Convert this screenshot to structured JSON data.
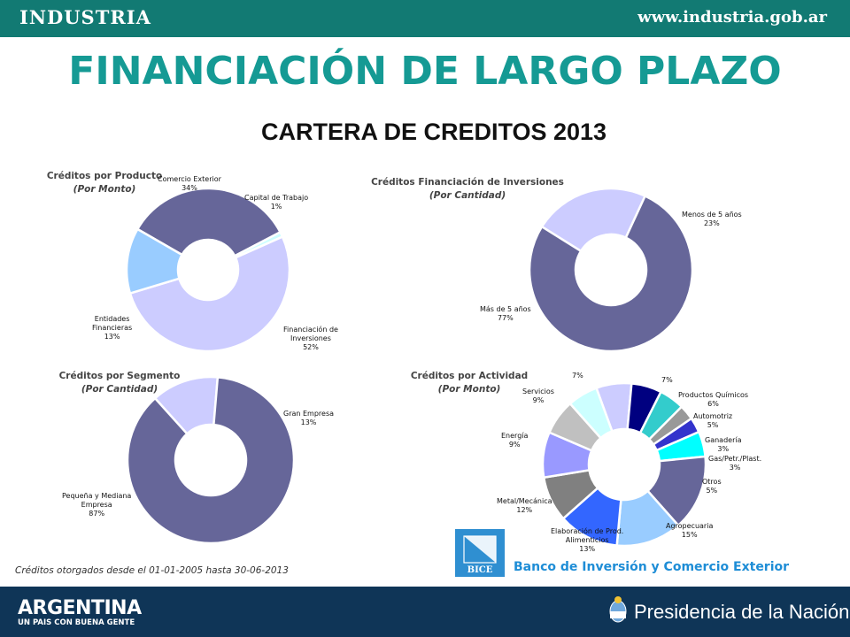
{
  "header": {
    "brand": "INDUSTRIA",
    "url": "www.industria.gob.ar",
    "brand_color": "#127a73"
  },
  "page": {
    "title": "FINANCIACIÓN DE  LARGO PLAZO",
    "subtitle": "CARTERA DE CREDITOS 2013"
  },
  "chart_data": [
    {
      "type": "pie",
      "title": "Créditos por Producto",
      "subtitle": "(Por Monto)",
      "slices": [
        {
          "label": "Comercio Exterior",
          "value": 34,
          "pct": "34%",
          "color": "#666699"
        },
        {
          "label": "Capital de Trabajo",
          "value": 1,
          "pct": "1%",
          "color": "#ccffff"
        },
        {
          "label": "Financiación de Inversiones",
          "value": 52,
          "pct": "52%",
          "color": "#ccccff"
        },
        {
          "label": "Entidades Financieras",
          "value": 13,
          "pct": "13%",
          "color": "#99ccff"
        }
      ],
      "labels": [
        {
          "lines": [
            "Comercio Exterior",
            "34%"
          ]
        },
        {
          "lines": [
            "Capital de Trabajo",
            "1%"
          ]
        },
        {
          "lines": [
            "Financiación de",
            "Inversiones",
            "52%"
          ]
        },
        {
          "lines": [
            "Entidades",
            "Financieras",
            "13%"
          ]
        }
      ]
    },
    {
      "type": "pie",
      "title": "Créditos Financiación  de Inversiones",
      "subtitle": "(Por Cantidad)",
      "slices": [
        {
          "label": "Menos de 5 años",
          "value": 23,
          "pct": "23%",
          "color": "#ccccff"
        },
        {
          "label": "Más de 5 años",
          "value": 77,
          "pct": "77%",
          "color": "#666699"
        }
      ],
      "labels": [
        {
          "lines": [
            "Menos de 5 años",
            "23%"
          ]
        },
        {
          "lines": [
            "Más de 5 años",
            "77%"
          ]
        }
      ]
    },
    {
      "type": "pie",
      "title": "Créditos por Segmento",
      "subtitle": "(Por Cantidad)",
      "slices": [
        {
          "label": "Gran Empresa",
          "value": 13,
          "pct": "13%",
          "color": "#ccccff"
        },
        {
          "label": "Pequeña y Mediana Empresa",
          "value": 87,
          "pct": "87%",
          "color": "#666699"
        }
      ],
      "labels": [
        {
          "lines": [
            "Gran Empresa",
            "13%"
          ]
        },
        {
          "lines": [
            "Pequeña y Mediana",
            "Empresa",
            "87%"
          ]
        }
      ]
    },
    {
      "type": "pie",
      "title": "Créditos por Actividad",
      "subtitle": "(Por Monto)",
      "slices": [
        {
          "label": "",
          "value": 7,
          "pct": "7%",
          "color": "#ccccff"
        },
        {
          "label": "Productos Químicos",
          "value": 6,
          "pct": "6%",
          "color": "#000080"
        },
        {
          "label": "Automotriz",
          "value": 5,
          "pct": "5%",
          "color": "#33cccc"
        },
        {
          "label": "Ganadería",
          "value": 3,
          "pct": "3%",
          "color": "#999999"
        },
        {
          "label": "Gas/Petr./Plast.",
          "value": 3,
          "pct": "3%",
          "color": "#3333cc"
        },
        {
          "label": "Otros",
          "value": 5,
          "pct": "5%",
          "color": "#00ffff"
        },
        {
          "label": "Agropecuaria",
          "value": 15,
          "pct": "15%",
          "color": "#666699"
        },
        {
          "label": "Elaboración de Prod. Alimenticios",
          "value": 13,
          "pct": "13%",
          "color": "#99ccff"
        },
        {
          "label": "Metal/Mecánica",
          "value": 12,
          "pct": "12%",
          "color": "#3366ff"
        },
        {
          "label": "Energía",
          "value": 9,
          "pct": "9%",
          "color": "#808080"
        },
        {
          "label": "Servicios",
          "value": 9,
          "pct": "9%",
          "color": "#9999ff"
        },
        {
          "label": "",
          "value": 7,
          "pct": "7%",
          "color": "#c0c0c0"
        },
        {
          "label": "",
          "value": 6,
          "pct": "",
          "color": "#ccffff"
        }
      ],
      "labels": [
        {
          "lines": [
            "7%"
          ]
        },
        {
          "lines": [
            "Productos Químicos",
            "6%"
          ]
        },
        {
          "lines": [
            "Automotriz",
            "5%"
          ]
        },
        {
          "lines": [
            "Ganadería",
            "3%"
          ]
        },
        {
          "lines": [
            "Gas/Petr./Plast.",
            "3%"
          ]
        },
        {
          "lines": [
            "Otros",
            "5%"
          ]
        },
        {
          "lines": [
            "Agropecuaria",
            "15%"
          ]
        },
        {
          "lines": [
            "Elaboración de Prod.",
            "Alimenticios",
            "13%"
          ]
        },
        {
          "lines": [
            "Metal/Mecánica",
            "12%"
          ]
        },
        {
          "lines": [
            "Energía",
            "9%"
          ]
        },
        {
          "lines": [
            "Servicios",
            "9%"
          ]
        },
        {
          "lines": [
            "7%"
          ]
        }
      ]
    }
  ],
  "footer": {
    "note": "Créditos otorgados desde el 01-01-2005  hasta 30-06-2013",
    "bank_logo": "BICE",
    "bank_name": "Banco de Inversión y Comercio Exterior",
    "argentina": "ARGENTINA",
    "argentina_tagline": "UN PAIS CON BUENA GENTE",
    "presidency": "Presidencia de la Nación"
  }
}
